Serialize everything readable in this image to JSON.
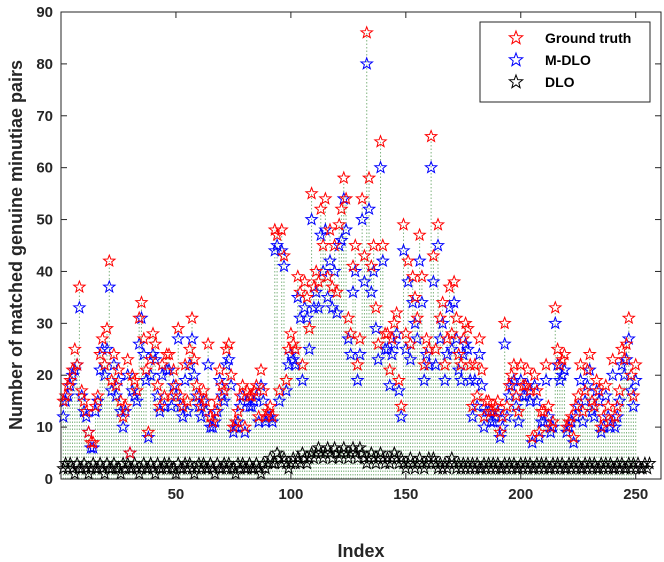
{
  "chart_data": {
    "type": "scatter",
    "title": "",
    "xlabel": "Index",
    "ylabel": "Number of matched genuine minutiae pairs",
    "xlim": [
      0,
      261
    ],
    "ylim": [
      0,
      90
    ],
    "xticks": [
      50,
      100,
      150,
      200,
      250
    ],
    "yticks": [
      0,
      10,
      20,
      30,
      40,
      50,
      60,
      70,
      80,
      90
    ],
    "grid": false,
    "legend_position": "top-right",
    "stem_color": "#7fb37f",
    "series": [
      {
        "name": "Ground truth",
        "color": "#ff0000",
        "values": [
          15,
          16,
          18,
          19,
          21,
          25,
          22,
          37,
          17,
          15,
          13,
          9,
          7,
          7,
          14,
          16,
          24,
          27,
          22,
          29,
          42,
          19,
          24,
          18,
          21,
          15,
          12,
          14,
          23,
          5,
          20,
          19,
          17,
          31,
          34,
          27,
          21,
          9,
          23,
          28,
          26,
          18,
          14,
          22,
          16,
          24,
          24,
          16,
          21,
          18,
          29,
          16,
          14,
          22,
          15,
          25,
          31,
          23,
          18,
          16,
          14,
          17,
          15,
          26,
          12,
          11,
          13,
          15,
          21,
          18,
          17,
          25,
          26,
          20,
          10,
          11,
          13,
          16,
          18,
          10,
          17,
          16,
          16,
          17,
          18,
          12,
          21,
          17,
          12,
          13,
          14,
          12,
          48,
          47,
          17,
          48,
          43,
          19,
          25,
          28,
          26,
          25,
          39,
          36,
          22,
          38,
          35,
          29,
          55,
          37,
          40,
          38,
          52,
          45,
          54,
          39,
          48,
          37,
          45,
          36,
          49,
          52,
          58,
          54,
          31,
          28,
          41,
          45,
          22,
          27,
          54,
          43,
          86,
          58,
          41,
          45,
          33,
          26,
          65,
          45,
          28,
          28,
          21,
          27,
          30,
          32,
          19,
          14,
          49,
          28,
          42,
          26,
          39,
          35,
          31,
          47,
          39,
          22,
          27,
          25,
          66,
          43,
          25,
          49,
          31,
          34,
          22,
          27,
          37,
          28,
          38,
          31,
          24,
          22,
          27,
          30,
          29,
          22,
          14,
          22,
          16,
          27,
          21,
          12,
          15,
          15,
          13,
          13,
          14,
          15,
          9,
          12,
          30,
          14,
          18,
          20,
          22,
          16,
          13,
          22,
          18,
          18,
          21,
          17,
          8,
          20,
          17,
          9,
          13,
          13,
          22,
          14,
          10,
          11,
          33,
          25,
          22,
          23,
          24,
          10,
          11,
          12,
          8,
          14,
          16,
          22,
          13,
          17,
          21,
          24,
          15,
          14,
          19,
          17,
          10,
          12,
          18,
          14,
          11,
          23,
          12,
          14,
          17,
          25,
          23,
          26,
          31,
          20,
          16,
          22
        ]
      },
      {
        "name": "M-DLO",
        "color": "#0000ff",
        "values": [
          12,
          15,
          16,
          18,
          20,
          21,
          22,
          33,
          16,
          13,
          12,
          9,
          6,
          6,
          13,
          15,
          21,
          25,
          20,
          25,
          37,
          17,
          22,
          16,
          19,
          13,
          10,
          13,
          20,
          5,
          17,
          16,
          15,
          26,
          31,
          24,
          19,
          8,
          20,
          24,
          23,
          16,
          13,
          20,
          14,
          21,
          21,
          14,
          18,
          16,
          27,
          14,
          12,
          19,
          13,
          22,
          27,
          20,
          16,
          14,
          12,
          15,
          13,
          22,
          10,
          10,
          11,
          13,
          19,
          16,
          15,
          22,
          23,
          18,
          9,
          10,
          11,
          14,
          16,
          9,
          15,
          14,
          14,
          15,
          16,
          11,
          18,
          15,
          11,
          12,
          12,
          11,
          44,
          45,
          15,
          44,
          41,
          17,
          22,
          24,
          23,
          22,
          35,
          31,
          19,
          33,
          31,
          25,
          50,
          33,
          36,
          33,
          47,
          40,
          48,
          35,
          42,
          33,
          40,
          32,
          45,
          46,
          54,
          48,
          27,
          24,
          36,
          40,
          19,
          24,
          50,
          38,
          80,
          52,
          36,
          40,
          29,
          23,
          60,
          42,
          25,
          25,
          18,
          24,
          26,
          28,
          17,
          12,
          44,
          25,
          38,
          23,
          34,
          30,
          27,
          42,
          34,
          19,
          24,
          22,
          60,
          38,
          22,
          45,
          27,
          30,
          19,
          24,
          33,
          25,
          34,
          27,
          21,
          19,
          24,
          26,
          25,
          19,
          12,
          19,
          14,
          24,
          18,
          10,
          13,
          13,
          11,
          11,
          12,
          13,
          8,
          10,
          26,
          12,
          16,
          18,
          19,
          14,
          11,
          19,
          16,
          16,
          18,
          15,
          7,
          18,
          15,
          8,
          11,
          11,
          19,
          12,
          9,
          10,
          30,
          22,
          19,
          20,
          21,
          9,
          10,
          11,
          7,
          12,
          14,
          19,
          11,
          15,
          18,
          21,
          13,
          12,
          17,
          15,
          9,
          10,
          16,
          12,
          10,
          20,
          10,
          12,
          15,
          22,
          20,
          23,
          27,
          17,
          14,
          19
        ]
      },
      {
        "name": "DLO",
        "color": "#000000",
        "values": [
          2,
          3,
          2,
          3,
          2,
          1,
          3,
          2,
          2,
          3,
          2,
          1,
          2,
          3,
          2,
          2,
          3,
          2,
          1,
          3,
          2,
          2,
          3,
          2,
          2,
          1,
          3,
          2,
          3,
          2,
          2,
          3,
          2,
          1,
          2,
          3,
          2,
          2,
          3,
          2,
          1,
          3,
          2,
          2,
          3,
          2,
          3,
          2,
          2,
          1,
          3,
          2,
          2,
          3,
          2,
          3,
          2,
          1,
          2,
          3,
          2,
          3,
          2,
          2,
          3,
          2,
          1,
          3,
          2,
          2,
          3,
          2,
          3,
          2,
          2,
          1,
          3,
          2,
          3,
          2,
          2,
          3,
          2,
          2,
          3,
          2,
          1,
          3,
          2,
          3,
          4,
          3,
          3,
          5,
          4,
          3,
          4,
          3,
          2,
          3,
          4,
          3,
          4,
          3,
          5,
          4,
          3,
          4,
          5,
          4,
          5,
          6,
          5,
          4,
          5,
          6,
          5,
          4,
          6,
          5,
          4,
          5,
          6,
          5,
          4,
          5,
          6,
          5,
          4,
          6,
          5,
          4,
          3,
          4,
          5,
          4,
          3,
          4,
          5,
          4,
          3,
          4,
          3,
          4,
          5,
          4,
          3,
          4,
          3,
          2,
          3,
          4,
          3,
          2,
          3,
          4,
          3,
          2,
          3,
          4,
          3,
          4,
          3,
          2,
          3,
          2,
          3,
          2,
          3,
          4,
          3,
          2,
          3,
          2,
          3,
          2,
          3,
          2,
          3,
          2,
          3,
          2,
          2,
          3,
          2,
          3,
          2,
          3,
          2,
          3,
          2,
          2,
          3,
          2,
          3,
          2,
          3,
          2,
          2,
          3,
          2,
          3,
          2,
          3,
          2,
          2,
          3,
          2,
          3,
          2,
          3,
          2,
          2,
          3,
          2,
          3,
          2,
          3,
          2,
          2,
          3,
          2,
          3,
          2,
          3,
          2,
          2,
          3,
          2,
          3,
          2,
          3,
          2,
          2,
          3,
          2,
          3,
          2,
          3,
          2,
          2,
          3,
          2,
          3,
          2,
          2,
          3,
          2,
          3,
          2,
          3,
          2,
          2,
          3,
          2,
          3
        ]
      }
    ]
  }
}
